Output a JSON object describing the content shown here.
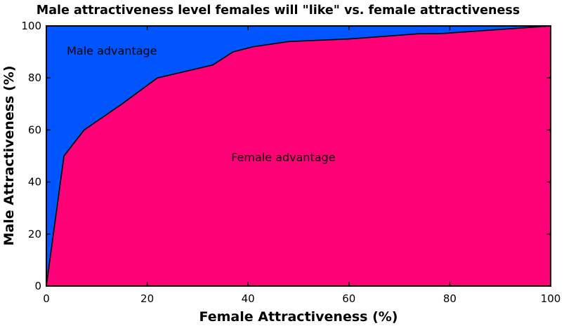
{
  "chart_data": {
    "type": "area",
    "title": "Male attractiveness level females will \"like\" vs. female attractiveness",
    "xlabel": "Female Attractiveness (%)",
    "ylabel": "Male Attractiveness (%)",
    "xlim": [
      0,
      100
    ],
    "ylim": [
      0,
      100
    ],
    "xticks": [
      0,
      20,
      40,
      60,
      80,
      100
    ],
    "yticks": [
      0,
      20,
      40,
      60,
      80,
      100
    ],
    "grid": false,
    "colors": {
      "above": "#0055ff",
      "below": "#ff0077",
      "line": "#000000"
    },
    "regions": [
      {
        "label": "Male advantage",
        "x": 13,
        "y": 89
      },
      {
        "label": "Female advantage",
        "x": 47,
        "y": 48
      }
    ],
    "series": [
      {
        "x": [
          0,
          3.5,
          7.5,
          15,
          22,
          33,
          37,
          41,
          48,
          60,
          74,
          78,
          100
        ],
        "y": [
          0,
          50,
          60,
          70,
          80,
          85,
          90,
          92,
          94,
          95,
          97,
          97,
          100
        ]
      }
    ]
  }
}
